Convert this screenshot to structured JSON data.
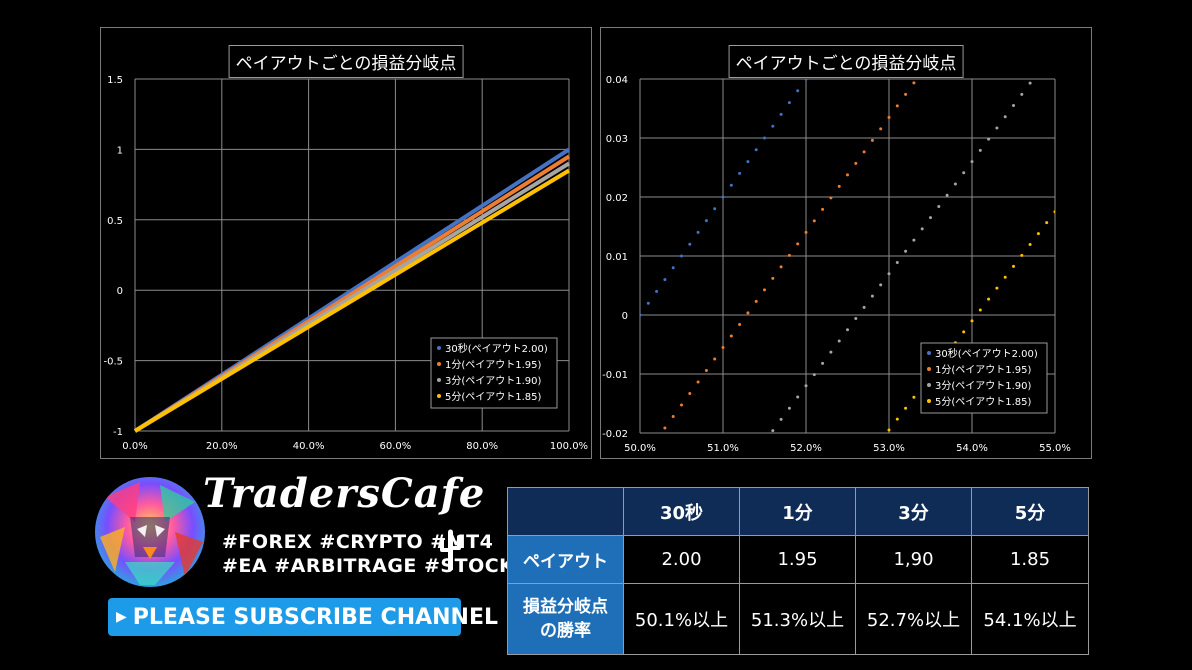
{
  "chart_data": [
    {
      "type": "line",
      "title": "ペイアウトごとの損益分岐点",
      "x_tick_labels": [
        "0.0%",
        "20.0%",
        "40.0%",
        "60.0%",
        "80.0%",
        "100.0%"
      ],
      "y_tick_labels": [
        "1.5",
        "1",
        "0.5",
        "0",
        "-0.5",
        "-1"
      ],
      "xlim": [
        0,
        1
      ],
      "ylim": [
        -1,
        1.5
      ],
      "x_ticks": [
        0,
        0.2,
        0.4,
        0.6,
        0.8,
        1.0
      ],
      "y_ticks": [
        1.5,
        1,
        0.5,
        0,
        -0.5,
        -1
      ],
      "grid": true,
      "legend_position": "bottom-right",
      "series": [
        {
          "name": "30秒(ペイアウト2.00)",
          "color": "#4472c4",
          "x": [
            0,
            1
          ],
          "y": [
            -1,
            1.0
          ]
        },
        {
          "name": "1分(ペイアウト1.95)",
          "color": "#ed7d31",
          "x": [
            0,
            1
          ],
          "y": [
            -1,
            0.95
          ]
        },
        {
          "name": "3分(ペイアウト1.90)",
          "color": "#a5a5a5",
          "x": [
            0,
            1
          ],
          "y": [
            -1,
            0.9
          ]
        },
        {
          "name": "5分(ペイアウト1.85)",
          "color": "#ffc000",
          "x": [
            0,
            1
          ],
          "y": [
            -1,
            0.85
          ]
        }
      ]
    },
    {
      "type": "scatter",
      "title": "ペイアウトごとの損益分岐点",
      "x_tick_labels": [
        "50.0%",
        "51.0%",
        "52.0%",
        "53.0%",
        "54.0%",
        "55.0%"
      ],
      "y_tick_labels": [
        "0.04",
        "0.03",
        "0.02",
        "0.01",
        "0",
        "-0.01",
        "-0.02"
      ],
      "xlim": [
        0.5,
        0.55
      ],
      "ylim": [
        -0.02,
        0.04
      ],
      "x_ticks": [
        0.5,
        0.51,
        0.52,
        0.53,
        0.54,
        0.55
      ],
      "y_ticks": [
        0.04,
        0.03,
        0.02,
        0.01,
        0,
        -0.01,
        -0.02
      ],
      "grid": true,
      "legend_position": "bottom-right",
      "x_step": 0.001,
      "series": [
        {
          "name": "30秒(ペイアウト2.00)",
          "color": "#4472c4",
          "payout": 2.0
        },
        {
          "name": "1分(ペイアウト1.95)",
          "color": "#ed7d31",
          "payout": 1.95
        },
        {
          "name": "3分(ペイアウト1.90)",
          "color": "#a5a5a5",
          "payout": 1.9
        },
        {
          "name": "5分(ペイアウト1.85)",
          "color": "#ffc000",
          "payout": 1.85
        }
      ]
    }
  ],
  "brand": {
    "name": "TradersCafe",
    "hashtags_line1": "#FOREX #CRYPTO #MT4",
    "hashtags_line2": "#EA #ARBITRAGE #STOCK",
    "subscribe_label": "PLEASE SUBSCRIBE CHANNEL",
    "subscribe_color": "#1e9be8"
  },
  "table": {
    "headers": [
      "30秒",
      "1分",
      "3分",
      "5分"
    ],
    "payout_label": "ペイアウト",
    "payouts": [
      "2.00",
      "1.95",
      "1,90",
      "1.85"
    ],
    "breakeven_label_line1": "損益分岐点",
    "breakeven_label_line2": "の勝率",
    "breakeven": [
      "50.1%以上",
      "51.3%以上",
      "52.7%以上",
      "54.1%以上"
    ],
    "header_color": "#0f2c57",
    "row_label_color": "#1e6fb7"
  },
  "icons": {
    "logo": "lion-logo-icon",
    "cactus": "cactus-icon",
    "subscribe_arrow": "arrow-right-icon"
  }
}
